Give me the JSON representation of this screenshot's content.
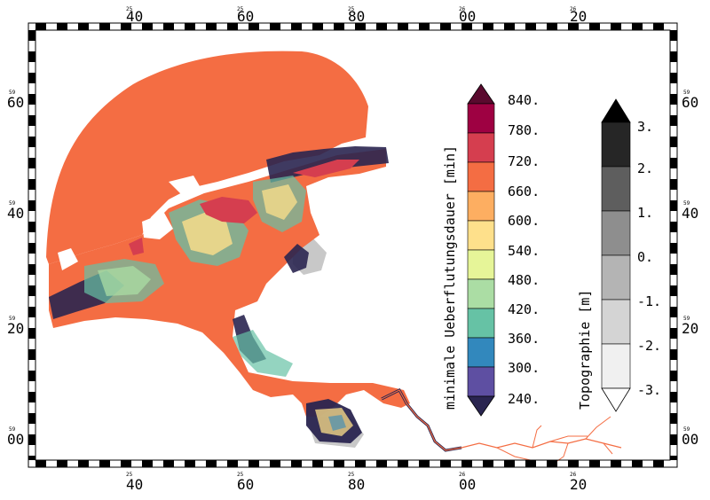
{
  "frame": {
    "top_labels": [
      {
        "small": "25",
        "big": "40"
      },
      {
        "small": "25",
        "big": "60"
      },
      {
        "small": "25",
        "big": "80"
      },
      {
        "small": "26",
        "big": "00"
      },
      {
        "small": "26",
        "big": "20"
      }
    ],
    "bottom_labels": [
      {
        "small": "25",
        "big": "40"
      },
      {
        "small": "25",
        "big": "60"
      },
      {
        "small": "25",
        "big": "80"
      },
      {
        "small": "26",
        "big": "00"
      },
      {
        "small": "26",
        "big": "20"
      }
    ],
    "left_labels": [
      {
        "small": "59",
        "big": "60"
      },
      {
        "small": "59",
        "big": "40"
      },
      {
        "small": "59",
        "big": "20"
      },
      {
        "small": "59",
        "big": "00"
      }
    ],
    "right_labels": [
      {
        "small": "59",
        "big": "60"
      },
      {
        "small": "59",
        "big": "40"
      },
      {
        "small": "59",
        "big": "20"
      },
      {
        "small": "59",
        "big": "00"
      }
    ]
  },
  "legend_flood": {
    "title": "minimale Ueberflutungsdauer [min]",
    "ticks": [
      "840.",
      "780.",
      "720.",
      "660.",
      "600.",
      "540.",
      "480.",
      "420.",
      "360.",
      "300.",
      "240."
    ],
    "colors_top_to_bottom": [
      "#9e0142",
      "#d53e4f",
      "#f46d43",
      "#fdae61",
      "#fee08b",
      "#e6f598",
      "#abdda4",
      "#66c2a5",
      "#3288bd",
      "#5e4fa2"
    ],
    "over_color": "#5a0a2e",
    "under_color": "#2a2550"
  },
  "legend_topo": {
    "title": "Topographie [m]",
    "ticks": [
      "3.",
      "2.",
      "1.",
      "0.",
      "-1.",
      "-2.",
      "-3."
    ],
    "colors_top_to_bottom": [
      "#262626",
      "#5e5e5e",
      "#8e8e8e",
      "#b4b4b4",
      "#d4d4d4",
      "#f0f0f0"
    ],
    "over_color": "#000000",
    "under_color": "#ffffff"
  },
  "map_colors": {
    "water": "#f46d43",
    "channel": "#d53e4f",
    "dark": "#2a2550",
    "mid": "#66c2a5",
    "yellow": "#fee08b",
    "land": "#c8c8c8",
    "river": "#f46d43"
  }
}
